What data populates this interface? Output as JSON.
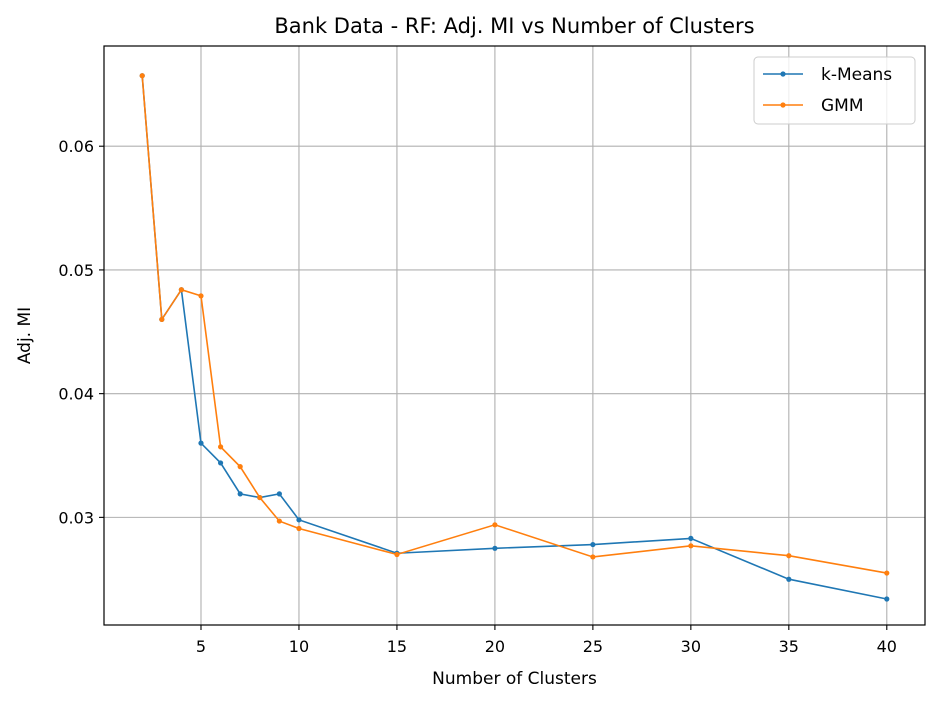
{
  "chart_data": {
    "type": "line",
    "title": "Bank Data - RF: Adj. MI vs Number of Clusters",
    "xlabel": "Number of Clusters",
    "ylabel": "Adj. MI",
    "xlim": [
      0.05,
      41.95
    ],
    "ylim": [
      0.0213,
      0.0681
    ],
    "xticks": [
      5,
      10,
      15,
      20,
      25,
      30,
      35,
      40
    ],
    "yticks": [
      0.03,
      0.04,
      0.05,
      0.06
    ],
    "ytick_labels": [
      "0.03",
      "0.04",
      "0.05",
      "0.06"
    ],
    "grid": true,
    "legend_position": "top-right",
    "x": [
      2,
      3,
      4,
      5,
      6,
      7,
      8,
      9,
      10,
      15,
      20,
      25,
      30,
      35,
      40
    ],
    "series": [
      {
        "name": "k-Means",
        "color": "#1f77b4",
        "values": [
          0.0657,
          0.046,
          0.0484,
          0.036,
          0.0344,
          0.0319,
          0.0316,
          0.0319,
          0.0298,
          0.0271,
          0.0275,
          0.0278,
          0.0283,
          0.025,
          0.0234
        ]
      },
      {
        "name": "GMM",
        "color": "#ff7f0e",
        "values": [
          0.0657,
          0.046,
          0.0484,
          0.0479,
          0.0357,
          0.0341,
          0.0316,
          0.0297,
          0.0291,
          0.027,
          0.0294,
          0.0268,
          0.0277,
          0.0269,
          0.0255
        ]
      }
    ]
  }
}
